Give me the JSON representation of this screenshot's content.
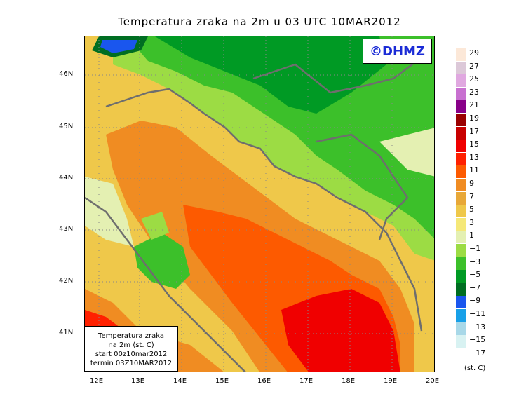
{
  "title": "Temperatura zraka na 2m u 03 UTC 10MAR2012",
  "logo": "©DHMZ",
  "info_box": {
    "line1": "Temperatura zraka",
    "line2": "na 2m (st. C)",
    "line3": "start 00z10mar2012",
    "line4": "termin 03Z10MAR2012"
  },
  "axes": {
    "latitude_labels": [
      "46N",
      "45N",
      "44N",
      "43N",
      "42N",
      "41N"
    ],
    "longitude_labels": [
      "12E",
      "13E",
      "14E",
      "15E",
      "16E",
      "17E",
      "18E",
      "19E",
      "20E"
    ]
  },
  "legend": {
    "unit": "(st. C)",
    "labels": [
      "29",
      "27",
      "25",
      "23",
      "21",
      "19",
      "17",
      "15",
      "13",
      "11",
      "9",
      "7",
      "5",
      "3",
      "1",
      "−1",
      "−3",
      "−5",
      "−7",
      "−9",
      "−11",
      "−13",
      "−15",
      "−17"
    ],
    "colors": [
      "#fce8d8",
      "#dcc8d8",
      "#e0a8e0",
      "#c870d0",
      "#880088",
      "#9a0000",
      "#c80000",
      "#f00000",
      "#ff2000",
      "#fd5a00",
      "#f08c22",
      "#e8a838",
      "#efc84a",
      "#f5e878",
      "#e4f0b2",
      "#9cdc44",
      "#3cc02a",
      "#009a24",
      "#006e22",
      "#1a56ee",
      "#18a0e8",
      "#a8d8e8",
      "#d8f2f2",
      "#ffffff"
    ]
  }
}
